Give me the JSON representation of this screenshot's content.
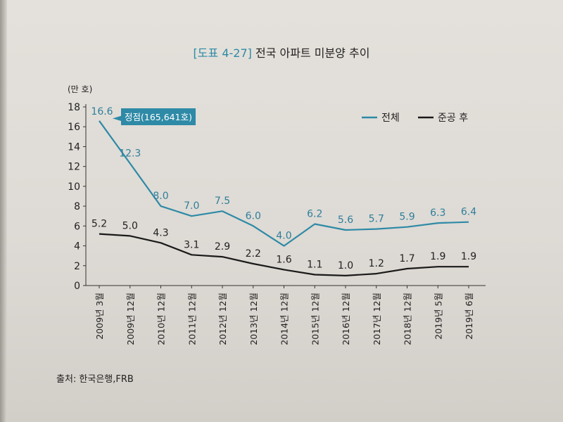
{
  "figure": {
    "number": "[도표 4-27]",
    "title": "전국 아파트 미분양 추이"
  },
  "source": "출처: 한국은행,FRB",
  "colors": {
    "total": "#2e8aa6",
    "completed": "#1a1a1a"
  },
  "chart_data": {
    "type": "line",
    "ylabel": "(만 호)",
    "ylim": [
      0,
      18
    ],
    "yticks": [
      0,
      2,
      4,
      6,
      8,
      10,
      12,
      14,
      16,
      18
    ],
    "categories": [
      "2009년 3월",
      "2009년 12월",
      "2010년 12월",
      "2011년 12월",
      "2012년 12월",
      "2013년 12월",
      "2014년 12월",
      "2015년 12월",
      "2016년 12월",
      "2017년 12월",
      "2018년 12월",
      "2019년 5월",
      "2019년 6월"
    ],
    "series": [
      {
        "name": "전체",
        "values": [
          16.6,
          12.3,
          8.0,
          7.0,
          7.5,
          6.0,
          4.0,
          6.2,
          5.6,
          5.7,
          5.9,
          6.3,
          6.4
        ],
        "labels": [
          "16.6",
          "12.3",
          "8.0",
          "7.0",
          "7.5",
          "6.0",
          "4.0",
          "6.2",
          "5.6",
          "5.7",
          "5.9",
          "6.3",
          "6.4"
        ]
      },
      {
        "name": "준공 후",
        "values": [
          5.2,
          5.0,
          4.3,
          3.1,
          2.9,
          2.2,
          1.6,
          1.1,
          1.0,
          1.2,
          1.7,
          1.9,
          1.9
        ],
        "labels": [
          "5.2",
          "5.0",
          "4.3",
          "3.1",
          "2.9",
          "2.2",
          "1.6",
          "1.1",
          "1.0",
          "1.2",
          "1.7",
          "1.9",
          "1.9"
        ]
      }
    ],
    "annotation": {
      "text": "정점(165,641호)",
      "series_index": 0,
      "point_index": 0
    },
    "legend_position": "top-right",
    "grid": false
  }
}
